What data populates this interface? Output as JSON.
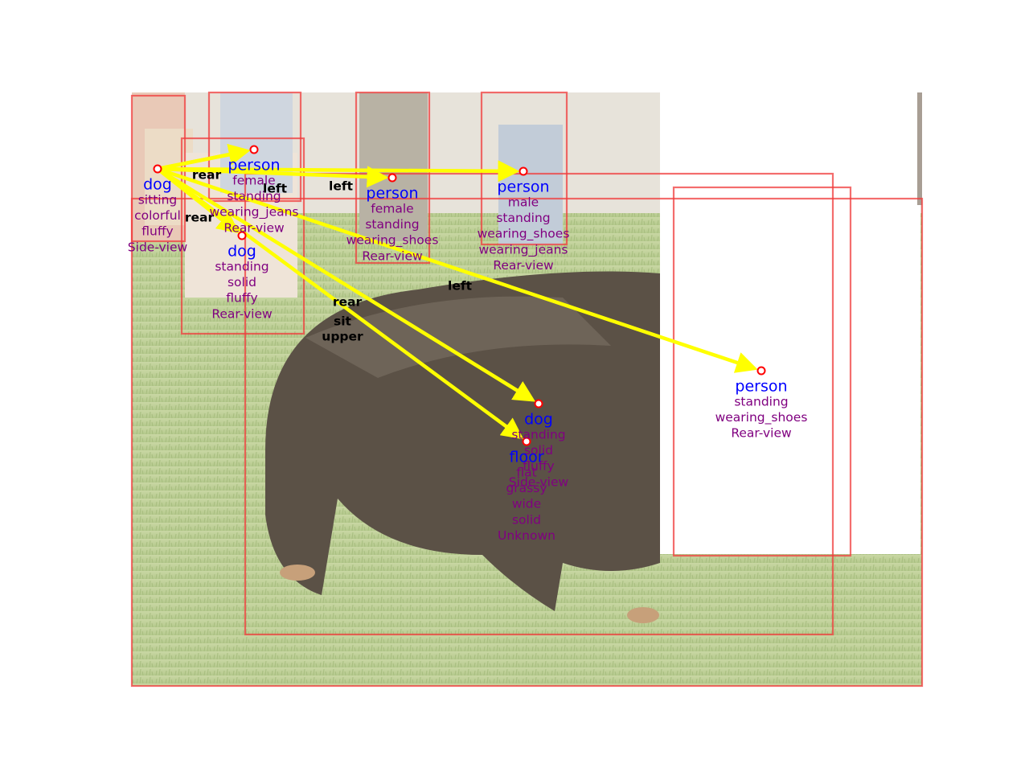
{
  "colors": {
    "box": "#f03c3c",
    "arrow": "#ffff00",
    "node_label": "#0000ff",
    "attribute": "#800080",
    "relation": "#000000",
    "marker": "#ff0000"
  },
  "nodes": [
    {
      "name": "dog",
      "attributes": [
        "sitting",
        "colorful",
        "fluffy",
        "Side-view"
      ]
    },
    {
      "name": "person",
      "attributes": [
        "female",
        "standing",
        "wearing_jeans",
        "Rear-view"
      ]
    },
    {
      "name": "dog",
      "attributes": [
        "standing",
        "solid",
        "fluffy",
        "Rear-view"
      ]
    },
    {
      "name": "person",
      "attributes": [
        "female",
        "standing",
        "wearing_shoes",
        "Rear-view"
      ]
    },
    {
      "name": "person",
      "attributes": [
        "male",
        "standing",
        "wearing_shoes",
        "wearing_jeans",
        "Rear-view"
      ]
    },
    {
      "name": "person",
      "attributes": [
        "standing",
        "wearing_shoes",
        "Rear-view"
      ]
    },
    {
      "name": "dog",
      "attributes": [
        "standing",
        "solid",
        "fluffy",
        "Side-view"
      ]
    },
    {
      "name": "floor",
      "attributes": [
        "flat",
        "grassy",
        "wide",
        "solid",
        "Unknown"
      ]
    }
  ],
  "relations": [
    {
      "label": "rear"
    },
    {
      "label": "left"
    },
    {
      "label": "left"
    },
    {
      "label": "rear"
    },
    {
      "label": "left"
    },
    {
      "label": "rear"
    },
    {
      "label": "sit"
    },
    {
      "label": "upper"
    }
  ]
}
